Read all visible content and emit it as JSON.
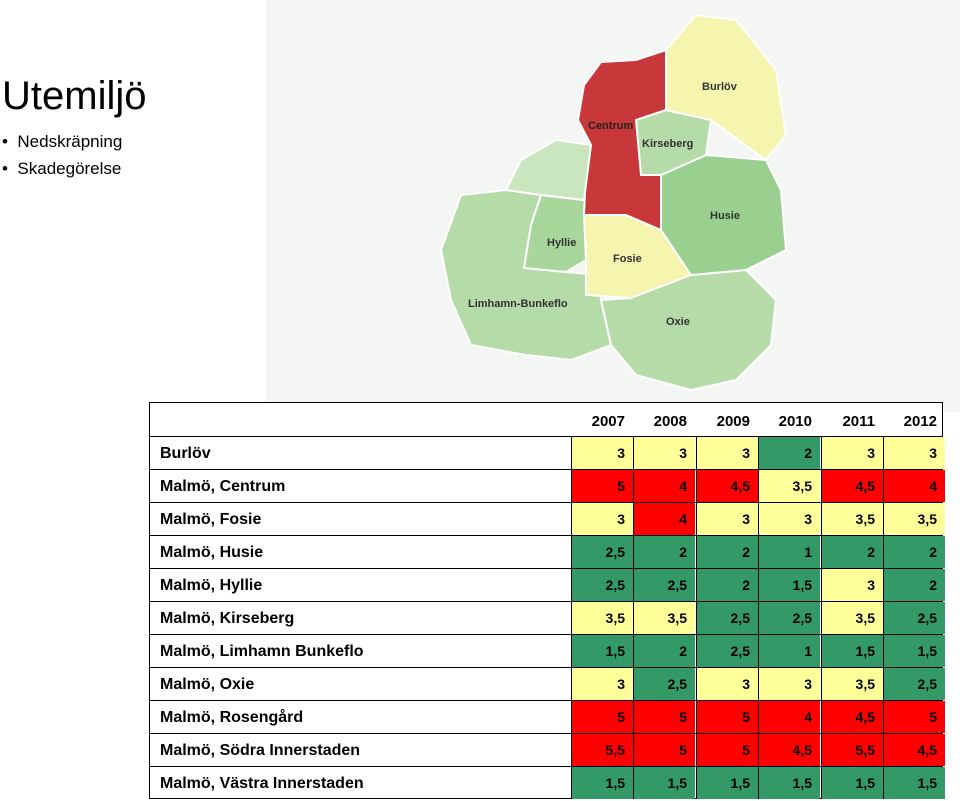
{
  "slide": {
    "title": "Utemiljö",
    "bullets": [
      "Nedskräpning",
      "Skadegörelse"
    ]
  },
  "map": {
    "district_labels": [
      "Burlöv",
      "Centrum",
      "Kirseberg",
      "Husie",
      "Hyllie",
      "Fosie",
      "Limhamn-Bunkeflo",
      "Oxie"
    ],
    "colors": {
      "red": "#c8383a",
      "yellow": "#f5f5b0",
      "green_light": "#b5dca8",
      "green_mid": "#9ad08f",
      "green_dark": "#8cc97e"
    }
  },
  "table": {
    "years": [
      "2007",
      "2008",
      "2009",
      "2010",
      "2011",
      "2012"
    ],
    "colors": {
      "red": "#ff0000",
      "yellow": "#ffff99",
      "green": "#339966",
      "white": "#ffffff"
    },
    "rows": [
      {
        "name": "Burlöv",
        "values": [
          "3",
          "3",
          "3",
          "2",
          "3",
          "3"
        ],
        "fills": [
          "yellow",
          "yellow",
          "yellow",
          "green",
          "yellow",
          "yellow"
        ]
      },
      {
        "name": "Malmö, Centrum",
        "values": [
          "5",
          "4",
          "4,5",
          "3,5",
          "4,5",
          "4"
        ],
        "fills": [
          "red",
          "red",
          "red",
          "yellow",
          "red",
          "red"
        ]
      },
      {
        "name": "Malmö, Fosie",
        "values": [
          "3",
          "4",
          "3",
          "3",
          "3,5",
          "3,5"
        ],
        "fills": [
          "yellow",
          "red",
          "yellow",
          "yellow",
          "yellow",
          "yellow"
        ]
      },
      {
        "name": "Malmö, Husie",
        "values": [
          "2,5",
          "2",
          "2",
          "1",
          "2",
          "2"
        ],
        "fills": [
          "green",
          "green",
          "green",
          "green",
          "green",
          "green"
        ]
      },
      {
        "name": "Malmö, Hyllie",
        "values": [
          "2,5",
          "2,5",
          "2",
          "1,5",
          "3",
          "2"
        ],
        "fills": [
          "green",
          "green",
          "green",
          "green",
          "yellow",
          "green"
        ]
      },
      {
        "name": "Malmö, Kirseberg",
        "values": [
          "3,5",
          "3,5",
          "2,5",
          "2,5",
          "3,5",
          "2,5"
        ],
        "fills": [
          "yellow",
          "yellow",
          "green",
          "green",
          "yellow",
          "green"
        ]
      },
      {
        "name": "Malmö, Limhamn Bunkeflo",
        "values": [
          "1,5",
          "2",
          "2,5",
          "1",
          "1,5",
          "1,5"
        ],
        "fills": [
          "green",
          "green",
          "green",
          "green",
          "green",
          "green"
        ]
      },
      {
        "name": "Malmö, Oxie",
        "values": [
          "3",
          "2,5",
          "3",
          "3",
          "3,5",
          "2,5"
        ],
        "fills": [
          "yellow",
          "green",
          "yellow",
          "yellow",
          "yellow",
          "green"
        ]
      },
      {
        "name": "Malmö, Rosengård",
        "values": [
          "5",
          "5",
          "5",
          "4",
          "4,5",
          "5"
        ],
        "fills": [
          "red",
          "red",
          "red",
          "red",
          "red",
          "red"
        ]
      },
      {
        "name": "Malmö, Södra Innerstaden",
        "values": [
          "5,5",
          "5",
          "5",
          "4,5",
          "5,5",
          "4,5"
        ],
        "fills": [
          "red",
          "red",
          "red",
          "red",
          "red",
          "red"
        ]
      },
      {
        "name": "Malmö, Västra Innerstaden",
        "values": [
          "1,5",
          "1,5",
          "1,5",
          "1,5",
          "1,5",
          "1,5"
        ],
        "fills": [
          "green",
          "green",
          "green",
          "green",
          "green",
          "green"
        ]
      }
    ]
  }
}
